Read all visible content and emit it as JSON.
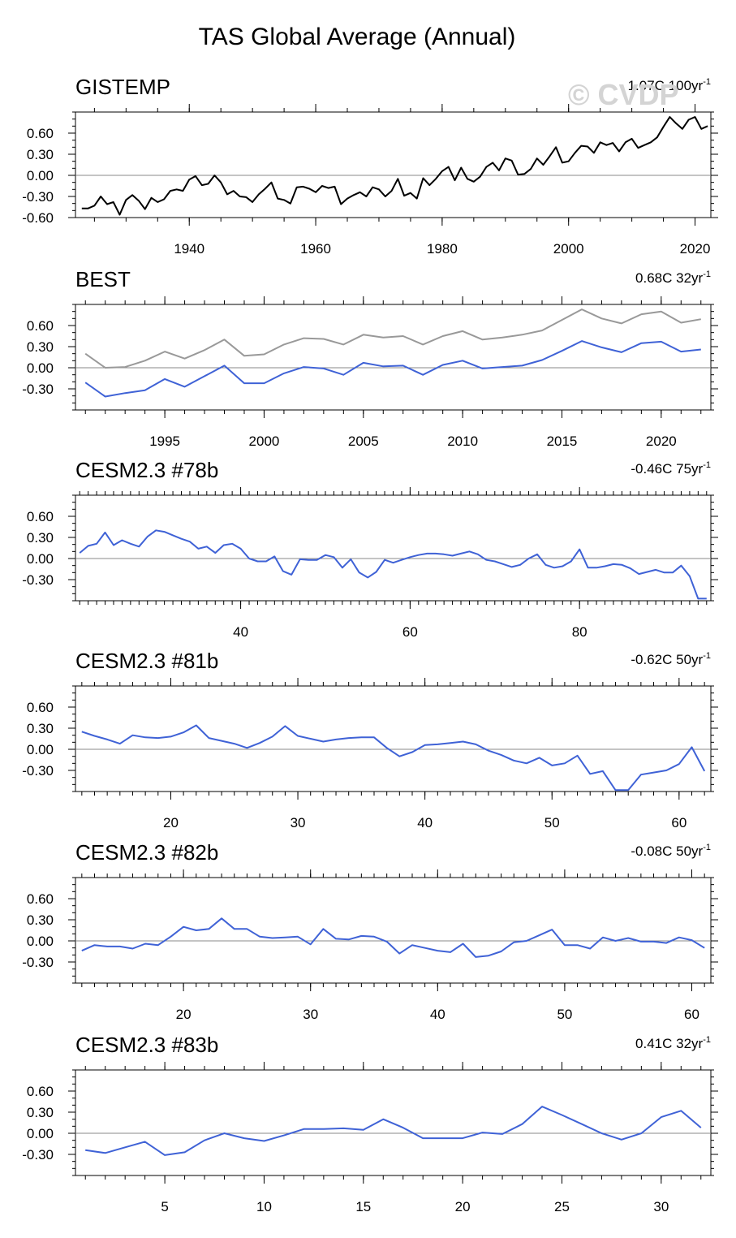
{
  "figure_title": "TAS Global Average (Annual)",
  "watermark": "© CVDP",
  "colors": {
    "obs": "#000000",
    "model": "#3f62d6",
    "secondary": "#999999",
    "zero_line": "#888888"
  },
  "chart_data": [
    {
      "type": "line",
      "title": "GISTEMP",
      "trend_label": "1.07C 100yr",
      "trend_sup": "-1",
      "xlim": [
        1922,
        2022.5
      ],
      "ylim": [
        -0.6,
        0.9
      ],
      "xticks": [
        1940,
        1960,
        1980,
        2000,
        2020
      ],
      "yticks": [
        -0.6,
        -0.3,
        0.0,
        0.3,
        0.6
      ],
      "ytick_labels": [
        "-0.60",
        "-0.30",
        "0.00",
        "0.30",
        "0.60"
      ],
      "series": [
        {
          "name": "GISTEMP",
          "color": "#000000",
          "x_start": 1923,
          "values": [
            -0.47,
            -0.47,
            -0.43,
            -0.3,
            -0.41,
            -0.38,
            -0.56,
            -0.35,
            -0.28,
            -0.36,
            -0.48,
            -0.32,
            -0.38,
            -0.34,
            -0.22,
            -0.2,
            -0.22,
            -0.06,
            -0.01,
            -0.14,
            -0.12,
            0.0,
            -0.1,
            -0.27,
            -0.22,
            -0.3,
            -0.31,
            -0.38,
            -0.27,
            -0.19,
            -0.1,
            -0.33,
            -0.35,
            -0.4,
            -0.17,
            -0.16,
            -0.19,
            -0.24,
            -0.15,
            -0.18,
            -0.16,
            -0.41,
            -0.33,
            -0.28,
            -0.24,
            -0.3,
            -0.17,
            -0.2,
            -0.3,
            -0.22,
            -0.05,
            -0.29,
            -0.25,
            -0.33,
            -0.04,
            -0.14,
            -0.05,
            0.06,
            0.12,
            -0.07,
            0.11,
            -0.05,
            -0.09,
            -0.02,
            0.12,
            0.18,
            0.07,
            0.24,
            0.21,
            0.01,
            0.02,
            0.09,
            0.24,
            0.15,
            0.27,
            0.4,
            0.18,
            0.2,
            0.32,
            0.42,
            0.41,
            0.32,
            0.47,
            0.43,
            0.46,
            0.34,
            0.47,
            0.52,
            0.39,
            0.43,
            0.47,
            0.54,
            0.69,
            0.83,
            0.74,
            0.66,
            0.79,
            0.83,
            0.66,
            0.7
          ]
        }
      ]
    },
    {
      "type": "line",
      "title": "BEST",
      "trend_label": "0.68C 32yr",
      "trend_sup": "-1",
      "xlim": [
        1990.5,
        2022.5
      ],
      "ylim": [
        -0.6,
        0.9
      ],
      "xticks": [
        1995,
        2000,
        2005,
        2010,
        2015,
        2020
      ],
      "yticks": [
        -0.3,
        0.0,
        0.3,
        0.6
      ],
      "ytick_labels": [
        "-0.30",
        "0.00",
        "0.30",
        "0.60"
      ],
      "series": [
        {
          "name": "upper (gray)",
          "color": "#999999",
          "x_start": 1991,
          "values": [
            0.2,
            0.0,
            0.01,
            0.1,
            0.23,
            0.13,
            0.25,
            0.4,
            0.17,
            0.19,
            0.33,
            0.42,
            0.41,
            0.33,
            0.47,
            0.43,
            0.45,
            0.33,
            0.45,
            0.52,
            0.4,
            0.43,
            0.47,
            0.53,
            0.68,
            0.83,
            0.7,
            0.63,
            0.76,
            0.8,
            0.64,
            0.69
          ]
        },
        {
          "name": "lower (blue)",
          "color": "#3f62d6",
          "x_start": 1991,
          "values": [
            -0.21,
            -0.41,
            -0.36,
            -0.32,
            -0.16,
            -0.27,
            -0.12,
            0.03,
            -0.22,
            -0.22,
            -0.08,
            0.01,
            -0.01,
            -0.1,
            0.07,
            0.02,
            0.03,
            -0.1,
            0.04,
            0.1,
            -0.01,
            0.01,
            0.03,
            0.11,
            0.24,
            0.38,
            0.29,
            0.22,
            0.35,
            0.37,
            0.23,
            0.26
          ]
        }
      ]
    },
    {
      "type": "line",
      "title": "CESM2.3 #78b",
      "trend_label": "-0.46C 75yr",
      "trend_sup": "-1",
      "xlim": [
        20.5,
        95.5
      ],
      "ylim": [
        -0.6,
        0.9
      ],
      "xticks": [
        40,
        60,
        80
      ],
      "yticks": [
        -0.3,
        0.0,
        0.3,
        0.6
      ],
      "ytick_labels": [
        "-0.30",
        "0.00",
        "0.30",
        "0.60"
      ],
      "series": [
        {
          "name": "CESM2.3 #78b",
          "color": "#3f62d6",
          "x_start": 21,
          "values": [
            0.08,
            0.18,
            0.21,
            0.37,
            0.19,
            0.26,
            0.21,
            0.17,
            0.31,
            0.4,
            0.38,
            0.33,
            0.28,
            0.24,
            0.14,
            0.17,
            0.08,
            0.19,
            0.21,
            0.14,
            0.0,
            -0.04,
            -0.04,
            0.03,
            -0.18,
            -0.23,
            -0.01,
            -0.02,
            -0.02,
            0.05,
            0.02,
            -0.13,
            -0.01,
            -0.2,
            -0.27,
            -0.19,
            -0.02,
            -0.06,
            -0.02,
            0.02,
            0.05,
            0.07,
            0.07,
            0.06,
            0.04,
            0.07,
            0.1,
            0.06,
            -0.02,
            -0.04,
            -0.08,
            -0.12,
            -0.09,
            0.0,
            0.06,
            -0.09,
            -0.13,
            -0.11,
            -0.04,
            0.13,
            -0.13,
            -0.13,
            -0.11,
            -0.08,
            -0.09,
            -0.14,
            -0.22,
            -0.19,
            -0.16,
            -0.2,
            -0.2,
            -0.1,
            -0.25,
            -0.57,
            -0.57
          ]
        }
      ]
    },
    {
      "type": "line",
      "title": "CESM2.3 #81b",
      "trend_label": "-0.62C 50yr",
      "trend_sup": "-1",
      "xlim": [
        12.5,
        62.5
      ],
      "ylim": [
        -0.6,
        0.9
      ],
      "xticks": [
        20,
        30,
        40,
        50,
        60
      ],
      "yticks": [
        -0.3,
        0.0,
        0.3,
        0.6
      ],
      "ytick_labels": [
        "-0.30",
        "0.00",
        "0.30",
        "0.60"
      ],
      "series": [
        {
          "name": "CESM2.3 #81b",
          "color": "#3f62d6",
          "x_start": 13,
          "values": [
            0.25,
            0.19,
            0.14,
            0.08,
            0.2,
            0.17,
            0.16,
            0.18,
            0.24,
            0.34,
            0.16,
            0.12,
            0.08,
            0.02,
            0.09,
            0.18,
            0.33,
            0.19,
            0.15,
            0.11,
            0.14,
            0.16,
            0.17,
            0.17,
            0.02,
            -0.1,
            -0.04,
            0.06,
            0.07,
            0.09,
            0.11,
            0.07,
            -0.02,
            -0.08,
            -0.16,
            -0.2,
            -0.12,
            -0.23,
            -0.2,
            -0.09,
            -0.35,
            -0.31,
            -0.58,
            -0.58,
            -0.36,
            -0.33,
            -0.3,
            -0.21,
            0.03,
            -0.31
          ]
        }
      ]
    },
    {
      "type": "line",
      "title": "CESM2.3 #82b",
      "trend_label": "-0.08C 50yr",
      "trend_sup": "-1",
      "xlim": [
        11.5,
        61.5
      ],
      "ylim": [
        -0.6,
        0.9
      ],
      "xticks": [
        20,
        30,
        40,
        50,
        60
      ],
      "yticks": [
        -0.3,
        0.0,
        0.3,
        0.6
      ],
      "ytick_labels": [
        "-0.30",
        "0.00",
        "0.30",
        "0.60"
      ],
      "series": [
        {
          "name": "CESM2.3 #82b",
          "color": "#3f62d6",
          "x_start": 12,
          "values": [
            -0.14,
            -0.06,
            -0.08,
            -0.08,
            -0.11,
            -0.04,
            -0.06,
            0.06,
            0.2,
            0.15,
            0.17,
            0.32,
            0.17,
            0.17,
            0.06,
            0.04,
            0.05,
            0.06,
            -0.05,
            0.17,
            0.03,
            0.02,
            0.07,
            0.06,
            -0.01,
            -0.18,
            -0.06,
            -0.1,
            -0.14,
            -0.16,
            -0.04,
            -0.23,
            -0.21,
            -0.15,
            -0.02,
            0.0,
            0.08,
            0.16,
            -0.06,
            -0.06,
            -0.11,
            0.05,
            0.0,
            0.04,
            -0.01,
            -0.01,
            -0.03,
            0.05,
            0.01,
            -0.1
          ]
        }
      ]
    },
    {
      "type": "line",
      "title": "CESM2.3 #83b",
      "trend_label": "0.41C 32yr",
      "trend_sup": "-1",
      "xlim": [
        0.5,
        32.5
      ],
      "ylim": [
        -0.6,
        0.9
      ],
      "xticks": [
        5,
        10,
        15,
        20,
        25,
        30
      ],
      "yticks": [
        -0.3,
        0.0,
        0.3,
        0.6
      ],
      "ytick_labels": [
        "-0.30",
        "0.00",
        "0.30",
        "0.60"
      ],
      "series": [
        {
          "name": "CESM2.3 #83b",
          "color": "#3f62d6",
          "x_start": 1,
          "values": [
            -0.24,
            -0.28,
            -0.2,
            -0.12,
            -0.31,
            -0.27,
            -0.1,
            0.0,
            -0.07,
            -0.11,
            -0.03,
            0.06,
            0.06,
            0.07,
            0.05,
            0.2,
            0.08,
            -0.07,
            -0.07,
            -0.07,
            0.01,
            -0.01,
            0.13,
            0.38,
            0.26,
            0.13,
            0.0,
            -0.09,
            0.0,
            0.23,
            0.32,
            0.08
          ]
        }
      ]
    }
  ]
}
